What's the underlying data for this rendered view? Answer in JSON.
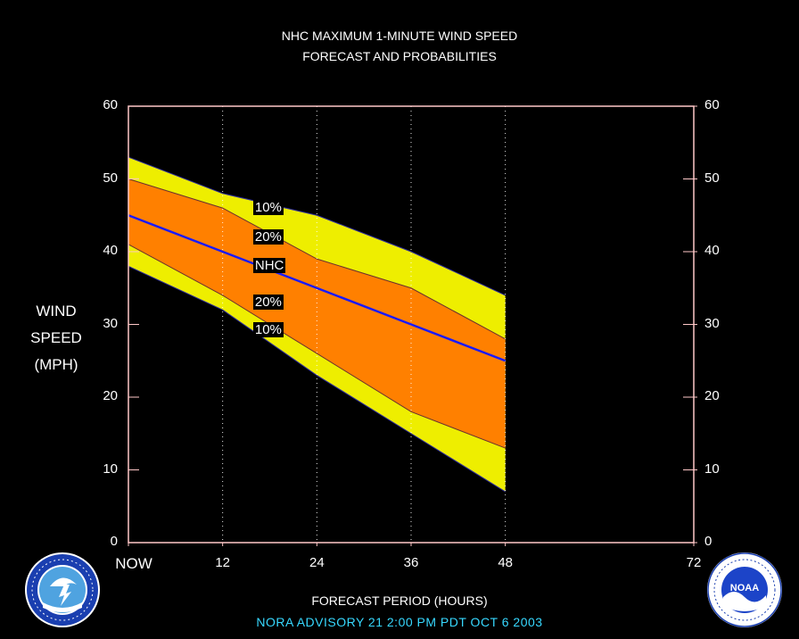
{
  "title_line1": "NHC MAXIMUM 1-MINUTE WIND SPEED",
  "title_line2": "FORECAST AND PROBABILITIES",
  "ylabel_lines": [
    "WIND",
    "SPEED",
    "(MPH)"
  ],
  "xlabel": "FORECAST PERIOD (HOURS)",
  "footer": "NORA   ADVISORY  21  2:00  PM  PDT  OCT  6  2003",
  "logo_left": {
    "name": "nws-logo",
    "text": "NATIONAL WEATHER SERVICE"
  },
  "logo_right": {
    "name": "noaa-logo",
    "text": "NOAA"
  },
  "colors": {
    "background": "#000000",
    "band_10_90": "#eeee00",
    "band_20_80": "#ff8000",
    "nhc_line": "#1a1aff",
    "axis": "#ffc8c8",
    "footer": "#37d8ff"
  },
  "chart_data": {
    "type": "area",
    "xlim": [
      0,
      72
    ],
    "ylim": [
      0,
      60
    ],
    "x": [
      0,
      12,
      24,
      36,
      48
    ],
    "x_tick_values": [
      0,
      12,
      24,
      36,
      48,
      72
    ],
    "x_tick_labels": [
      "NOW",
      "12",
      "24",
      "36",
      "48",
      "72"
    ],
    "y_ticks": [
      0,
      10,
      20,
      30,
      40,
      50,
      60
    ],
    "grid": "dotted vertical lines at 12, 24, 36, 48",
    "series": [
      {
        "name": "10%",
        "role": "upper_outer",
        "values": [
          53,
          48,
          45,
          40,
          34
        ]
      },
      {
        "name": "20%",
        "role": "upper_inner",
        "values": [
          50,
          46,
          39,
          35,
          28
        ]
      },
      {
        "name": "NHC",
        "role": "forecast",
        "values": [
          45,
          40,
          35,
          30,
          25
        ]
      },
      {
        "name": "20%",
        "role": "lower_inner",
        "values": [
          41,
          34,
          26,
          18,
          13
        ]
      },
      {
        "name": "10%",
        "role": "lower_outer",
        "values": [
          38,
          32,
          23,
          15,
          7
        ]
      }
    ],
    "band_labels": [
      "10%",
      "20%",
      "NHC",
      "20%",
      "10%"
    ]
  }
}
